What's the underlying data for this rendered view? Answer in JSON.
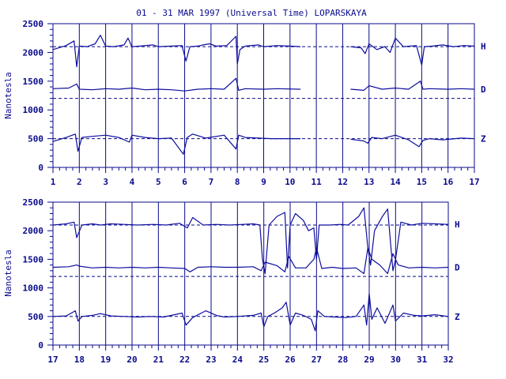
{
  "title": "01 - 31 MAR 1997 (Universal Time) LOPARSKAYA",
  "colors": {
    "ink": "#0a0a8c",
    "trace": "#0d0d9e",
    "background": "#ffffff"
  },
  "chart_data": [
    {
      "type": "line",
      "ylabel": "Nanotesla",
      "xlim": [
        1,
        17
      ],
      "ylim": [
        0,
        2500
      ],
      "x_ticks": [
        "1",
        "2",
        "3",
        "4",
        "5",
        "6",
        "7",
        "8",
        "9",
        "10",
        "11",
        "12",
        "13",
        "14",
        "15",
        "16",
        "17"
      ],
      "y_ticks": [
        "0",
        "500",
        "1000",
        "1500",
        "2000",
        "2500"
      ],
      "grid": "vertical lines at each day",
      "data_gap": [
        10.4,
        12.3
      ],
      "series": [
        {
          "name": "H",
          "baseline": 2100,
          "x": [
            1,
            1.5,
            1.8,
            1.9,
            2.0,
            2.3,
            2.6,
            2.8,
            3.0,
            3.3,
            3.7,
            3.85,
            4.0,
            4.3,
            4.8,
            5.0,
            5.5,
            5.9,
            6.05,
            6.2,
            6.5,
            6.7,
            6.95,
            7.2,
            7.6,
            7.95,
            8.0,
            8.1,
            8.3,
            8.8,
            9.0,
            9.5,
            10.0,
            10.4,
            12.3,
            12.7,
            12.85,
            13.0,
            13.3,
            13.6,
            13.8,
            14.0,
            14.3,
            14.8,
            15.0,
            15.1,
            15.4,
            15.8,
            16.2,
            16.6,
            17.0
          ],
          "values": [
            2050,
            2120,
            2200,
            1750,
            2110,
            2100,
            2150,
            2300,
            2110,
            2100,
            2130,
            2250,
            2100,
            2110,
            2130,
            2100,
            2110,
            2120,
            1850,
            2100,
            2110,
            2130,
            2150,
            2110,
            2120,
            2280,
            1800,
            2050,
            2110,
            2130,
            2100,
            2120,
            2110,
            2100,
            2100,
            2080,
            1980,
            2150,
            2050,
            2100,
            2000,
            2250,
            2100,
            2120,
            1780,
            2100,
            2110,
            2130,
            2100,
            2120,
            2110
          ]
        },
        {
          "name": "D",
          "baseline": 1200,
          "x": [
            1,
            1.6,
            1.9,
            2.0,
            2.5,
            3.0,
            3.5,
            4.0,
            4.5,
            5.0,
            5.5,
            6.0,
            6.5,
            7.0,
            7.5,
            7.95,
            8.05,
            8.3,
            9.0,
            9.5,
            10.4,
            12.3,
            12.8,
            13.0,
            13.5,
            14.0,
            14.5,
            14.95,
            15.05,
            15.3,
            16.0,
            16.5,
            17.0
          ],
          "values": [
            1370,
            1380,
            1450,
            1360,
            1350,
            1370,
            1360,
            1380,
            1350,
            1360,
            1350,
            1330,
            1360,
            1370,
            1360,
            1550,
            1340,
            1370,
            1360,
            1370,
            1360,
            1360,
            1340,
            1420,
            1360,
            1380,
            1360,
            1500,
            1360,
            1370,
            1360,
            1370,
            1360
          ]
        },
        {
          "name": "Z",
          "baseline": 500,
          "x": [
            1,
            1.5,
            1.85,
            1.95,
            2.1,
            2.5,
            3.0,
            3.5,
            3.9,
            4.0,
            4.5,
            5.0,
            5.5,
            5.95,
            6.1,
            6.3,
            6.8,
            7.5,
            7.95,
            8.05,
            8.3,
            8.8,
            9.3,
            10.4,
            12.3,
            12.8,
            12.95,
            13.1,
            13.5,
            14.0,
            14.5,
            14.9,
            15.05,
            15.3,
            15.8,
            16.5,
            17.0
          ],
          "values": [
            450,
            520,
            580,
            280,
            520,
            540,
            560,
            520,
            440,
            560,
            520,
            500,
            510,
            230,
            520,
            580,
            510,
            560,
            320,
            560,
            520,
            510,
            500,
            500,
            490,
            460,
            420,
            520,
            500,
            560,
            480,
            360,
            470,
            500,
            480,
            510,
            500
          ]
        }
      ]
    },
    {
      "type": "line",
      "ylabel": "Nanotesla",
      "xlim": [
        17,
        32
      ],
      "ylim": [
        0,
        2500
      ],
      "x_ticks": [
        "17",
        "18",
        "19",
        "20",
        "21",
        "22",
        "23",
        "24",
        "25",
        "26",
        "27",
        "28",
        "29",
        "30",
        "31",
        "32"
      ],
      "y_ticks": [
        "0",
        "500",
        "1000",
        "1500",
        "2000",
        "2500"
      ],
      "grid": "vertical lines at each day",
      "series": [
        {
          "name": "H",
          "baseline": 2100,
          "x": [
            17,
            17.5,
            17.8,
            17.9,
            18.1,
            18.5,
            18.8,
            19.2,
            19.7,
            20.2,
            20.8,
            21.3,
            21.8,
            22.1,
            22.3,
            22.7,
            23.2,
            23.7,
            24.2,
            24.6,
            24.85,
            24.95,
            25.05,
            25.2,
            25.5,
            25.8,
            25.9,
            26.0,
            26.2,
            26.5,
            26.7,
            26.9,
            27.0,
            27.1,
            27.5,
            27.9,
            28.2,
            28.6,
            28.8,
            28.95,
            29.05,
            29.2,
            29.5,
            29.7,
            29.9,
            30.0,
            30.2,
            30.6,
            31.0,
            31.5,
            32.0
          ],
          "values": [
            2100,
            2120,
            2150,
            1880,
            2100,
            2120,
            2100,
            2120,
            2110,
            2100,
            2110,
            2100,
            2130,
            2050,
            2230,
            2100,
            2110,
            2100,
            2110,
            2120,
            2100,
            1500,
            1250,
            2100,
            2250,
            2320,
            1350,
            2100,
            2300,
            2180,
            2000,
            2050,
            1500,
            2100,
            2100,
            2110,
            2100,
            2250,
            2400,
            1700,
            1400,
            2000,
            2250,
            2380,
            1300,
            1500,
            2150,
            2100,
            2130,
            2120,
            2110
          ]
        },
        {
          "name": "D",
          "baseline": 1200,
          "x": [
            17,
            17.6,
            17.9,
            18.0,
            18.5,
            19.0,
            19.5,
            20.0,
            20.5,
            21.0,
            21.5,
            22.0,
            22.2,
            22.5,
            23.0,
            23.5,
            24.0,
            24.6,
            24.9,
            25.05,
            25.5,
            25.8,
            25.95,
            26.2,
            26.6,
            26.9,
            27.0,
            27.2,
            27.6,
            28.0,
            28.5,
            28.8,
            28.95,
            29.1,
            29.4,
            29.7,
            29.9,
            30.1,
            30.5,
            31.0,
            31.5,
            32.0
          ],
          "values": [
            1360,
            1370,
            1400,
            1380,
            1350,
            1360,
            1350,
            1360,
            1350,
            1360,
            1350,
            1340,
            1280,
            1360,
            1370,
            1360,
            1360,
            1370,
            1300,
            1450,
            1390,
            1280,
            1550,
            1350,
            1350,
            1500,
            1700,
            1340,
            1360,
            1340,
            1350,
            1250,
            1700,
            1500,
            1400,
            1250,
            1600,
            1400,
            1350,
            1360,
            1350,
            1360
          ]
        },
        {
          "name": "Z",
          "baseline": 500,
          "x": [
            17,
            17.5,
            17.85,
            17.95,
            18.1,
            18.5,
            18.8,
            19.2,
            19.7,
            20.2,
            20.7,
            21.2,
            21.9,
            22.05,
            22.3,
            22.8,
            23.2,
            23.5,
            24.0,
            24.6,
            24.9,
            25.0,
            25.15,
            25.4,
            25.7,
            25.85,
            26.0,
            26.2,
            26.5,
            26.8,
            26.95,
            27.05,
            27.3,
            27.7,
            28.1,
            28.5,
            28.8,
            28.9,
            29.0,
            29.1,
            29.3,
            29.6,
            29.9,
            30.0,
            30.3,
            30.7,
            31.0,
            31.5,
            32.0
          ],
          "values": [
            500,
            510,
            600,
            420,
            500,
            520,
            550,
            510,
            500,
            490,
            500,
            490,
            560,
            350,
            480,
            600,
            520,
            490,
            500,
            520,
            560,
            320,
            500,
            560,
            650,
            750,
            350,
            560,
            520,
            450,
            250,
            600,
            500,
            490,
            480,
            500,
            700,
            350,
            900,
            450,
            650,
            380,
            700,
            420,
            560,
            520,
            510,
            530,
            500
          ]
        }
      ]
    }
  ]
}
